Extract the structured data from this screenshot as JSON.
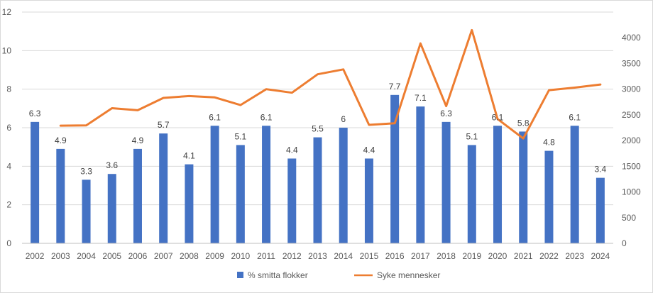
{
  "chart_data": {
    "type": "bar",
    "title": "",
    "xlabel": "",
    "ylabel": "",
    "y2label": "",
    "categories": [
      "2002",
      "2003",
      "2004",
      "2005",
      "2006",
      "2007",
      "2008",
      "2009",
      "2010",
      "2011",
      "2012",
      "2013",
      "2014",
      "2015",
      "2016",
      "2017",
      "2018",
      "2019",
      "2020",
      "2021",
      "2022",
      "2023",
      "2024"
    ],
    "series": [
      {
        "name": "% smitta flokker",
        "type": "bar",
        "axis": "left",
        "color": "#4472C4",
        "values": [
          6.3,
          4.9,
          3.3,
          3.6,
          4.9,
          5.7,
          4.1,
          6.1,
          5.1,
          6.1,
          4.4,
          5.5,
          6,
          4.4,
          7.7,
          7.1,
          6.3,
          5.1,
          6.1,
          5.8,
          4.8,
          6.1,
          3.4
        ],
        "labels": [
          "6.3",
          "4.9",
          "3.3",
          "3.6",
          "4.9",
          "5.7",
          "4.1",
          "6.1",
          "5.1",
          "6.1",
          "4.4",
          "5.5",
          "6",
          "4.4",
          "7.7",
          "7.1",
          "6.3",
          "5.1",
          "6.1",
          "5.8",
          "4.8",
          "6.1",
          "3.4"
        ]
      },
      {
        "name": "Syke mennesker",
        "type": "line",
        "axis": "right",
        "color": "#ED7D31",
        "values": [
          null,
          2290,
          2295,
          2630,
          2590,
          2830,
          2865,
          2840,
          2690,
          3000,
          2930,
          3290,
          3385,
          2305,
          2335,
          3890,
          2670,
          4150,
          2420,
          2040,
          2980,
          3030,
          3090
        ]
      }
    ],
    "ylim": [
      0,
      12
    ],
    "yticks": [
      "0",
      "2",
      "4",
      "6",
      "8",
      "10",
      "12"
    ],
    "y2lim": [
      0,
      4500
    ],
    "y2ticks": [
      "0",
      "500",
      "1000",
      "1500",
      "2000",
      "2500",
      "3000",
      "3500",
      "4000"
    ],
    "grid": "horizontal",
    "legend": "bottom-center",
    "colors": {
      "gridline": "#d9d9d9",
      "axis": "#bfbfbf",
      "text": "#595959",
      "border": "#d9d9d9"
    }
  }
}
